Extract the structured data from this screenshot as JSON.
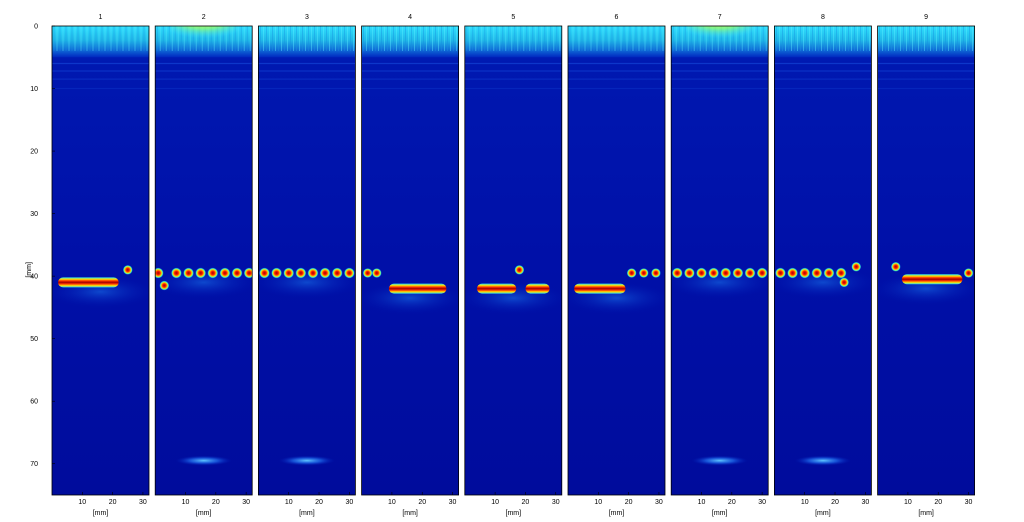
{
  "chart_data": {
    "type": "heatmap",
    "colormap": "jet",
    "colors": {
      "background": "#00007f",
      "top_band": "#39d4e8",
      "reflector": "#b40000",
      "frame": "#000000"
    },
    "ylabel": "[mm]",
    "ylim": [
      0,
      75
    ],
    "y_ticks": [
      0,
      10,
      20,
      30,
      40,
      50,
      60,
      70
    ],
    "xlim": [
      0,
      32
    ],
    "x_ticks": [
      10,
      20,
      30
    ],
    "panels": [
      {
        "title": "1",
        "xlabel": "[mm]",
        "pattern": "long-bar",
        "bar_x": [
          2,
          22
        ],
        "depth": 41,
        "extra_points": [
          [
            25,
            39
          ]
        ],
        "glare": false,
        "back_echo": false
      },
      {
        "title": "2",
        "xlabel": "[mm]",
        "pattern": "dot-row",
        "dots_x": [
          1,
          7,
          11,
          15,
          19,
          23,
          27,
          31
        ],
        "depth": 39.5,
        "extra_points": [
          [
            3,
            41.5
          ]
        ],
        "glare": true,
        "back_echo": true
      },
      {
        "title": "3",
        "xlabel": "[mm]",
        "pattern": "dot-row",
        "dots_x": [
          2,
          6,
          10,
          14,
          18,
          22,
          26,
          30
        ],
        "depth": 39.5,
        "extra_points": [],
        "glare": false,
        "back_echo": true
      },
      {
        "title": "4",
        "xlabel": "[mm]",
        "pattern": "long-bar",
        "bar_x": [
          9,
          28
        ],
        "depth": 42,
        "extra_points": [
          [
            2,
            39.5
          ],
          [
            5,
            39.5
          ]
        ],
        "glare": false,
        "back_echo": false
      },
      {
        "title": "5",
        "xlabel": "[mm]",
        "pattern": "bar-pair",
        "bar_x": [
          4,
          17
        ],
        "bar2_x": [
          20,
          28
        ],
        "depth": 42,
        "extra_points": [
          [
            18,
            39
          ]
        ],
        "glare": false,
        "back_echo": false
      },
      {
        "title": "6",
        "xlabel": "[mm]",
        "pattern": "long-bar",
        "bar_x": [
          2,
          19
        ],
        "depth": 42,
        "extra_points": [
          [
            21,
            39.5
          ],
          [
            25,
            39.5
          ],
          [
            29,
            39.5
          ]
        ],
        "glare": false,
        "back_echo": false
      },
      {
        "title": "7",
        "xlabel": "[mm]",
        "pattern": "dot-row",
        "dots_x": [
          2,
          6,
          10,
          14,
          18,
          22,
          26,
          30
        ],
        "depth": 39.5,
        "extra_points": [],
        "glare": true,
        "back_echo": true
      },
      {
        "title": "8",
        "xlabel": "[mm]",
        "pattern": "dot-row",
        "dots_x": [
          2,
          6,
          10,
          14,
          18,
          22
        ],
        "depth": 39.5,
        "extra_points": [
          [
            23,
            41
          ],
          [
            27,
            38.5
          ]
        ],
        "glare": false,
        "back_echo": true
      },
      {
        "title": "9",
        "xlabel": "[mm]",
        "pattern": "long-bar",
        "bar_x": [
          8,
          28
        ],
        "depth": 40.5,
        "extra_points": [
          [
            6,
            38.5
          ],
          [
            30,
            39.5
          ]
        ],
        "glare": false,
        "back_echo": false
      }
    ]
  }
}
